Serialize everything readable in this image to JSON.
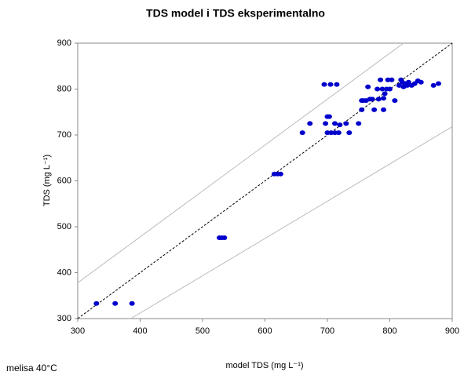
{
  "chart_data": {
    "type": "scatter",
    "title": "TDS  model i TDS eksperimentalno",
    "x_label": "model TDS (mg L⁻¹)",
    "y_label": "TDS (mg L⁻¹)",
    "footer": "melisa 40°C",
    "xlim": [
      300,
      900
    ],
    "ylim": [
      300,
      900
    ],
    "xticks": [
      300,
      400,
      500,
      600,
      700,
      800,
      900
    ],
    "yticks": [
      300,
      400,
      500,
      600,
      700,
      800,
      900
    ],
    "grid": false,
    "color": "#0000cc",
    "x": [
      330,
      360,
      387,
      527,
      531,
      535,
      615,
      620,
      625,
      660,
      672,
      695,
      705,
      715,
      697,
      700,
      703,
      700,
      706,
      712,
      718,
      712,
      720,
      735,
      730,
      750,
      755,
      755,
      758,
      762,
      765,
      768,
      772,
      775,
      780,
      782,
      785,
      788,
      790,
      792,
      795,
      797,
      800,
      803,
      808,
      790,
      815,
      818,
      820,
      822,
      825,
      828,
      830,
      835,
      840,
      845,
      850,
      870,
      878
    ],
    "y": [
      333,
      333,
      333,
      476,
      476,
      476,
      615,
      615,
      615,
      705,
      725,
      810,
      810,
      810,
      725,
      740,
      740,
      705,
      705,
      705,
      705,
      725,
      722,
      705,
      725,
      725,
      755,
      775,
      775,
      775,
      805,
      778,
      778,
      755,
      800,
      778,
      820,
      800,
      755,
      790,
      800,
      820,
      800,
      820,
      775,
      780,
      808,
      820,
      815,
      805,
      812,
      808,
      815,
      808,
      812,
      818,
      815,
      808,
      812
    ],
    "lines": [
      {
        "x": [
          300,
          900
        ],
        "y": [
          300,
          900
        ],
        "color": "#000000",
        "style": "dashed"
      },
      {
        "x": [
          300,
          822
        ],
        "y": [
          378,
          900
        ],
        "color": "#bbbbbb",
        "style": "solid"
      },
      {
        "x": [
          385,
          900
        ],
        "y": [
          300,
          718
        ],
        "color": "#bbbbbb",
        "style": "solid"
      }
    ]
  }
}
